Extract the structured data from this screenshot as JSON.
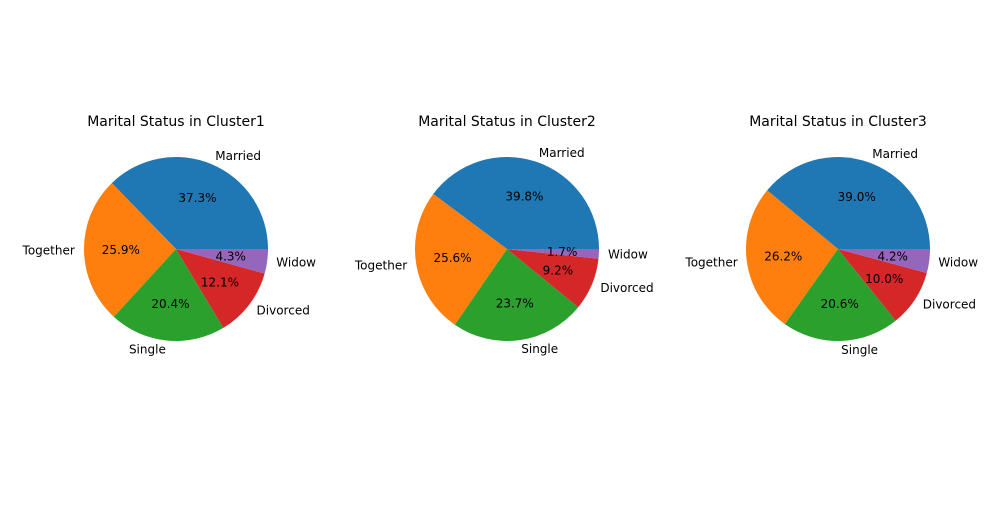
{
  "chart_data": [
    {
      "type": "pie",
      "title": "Marital Status in Cluster1",
      "categories": [
        "Married",
        "Together",
        "Single",
        "Divorced",
        "Widow"
      ],
      "values": [
        37.3,
        25.9,
        20.4,
        12.1,
        4.3
      ],
      "value_labels": [
        "37.3%",
        "25.9%",
        "20.4%",
        "12.1%",
        "4.3%"
      ],
      "colors": [
        "#1f77b4",
        "#ff7f0e",
        "#2ca02c",
        "#d62728",
        "#9467bd"
      ]
    },
    {
      "type": "pie",
      "title": "Marital Status in Cluster2",
      "categories": [
        "Married",
        "Together",
        "Single",
        "Divorced",
        "Widow"
      ],
      "values": [
        39.8,
        25.6,
        23.7,
        9.2,
        1.7
      ],
      "value_labels": [
        "39.8%",
        "25.6%",
        "23.7%",
        "9.2%",
        "1.7%"
      ],
      "colors": [
        "#1f77b4",
        "#ff7f0e",
        "#2ca02c",
        "#d62728",
        "#9467bd"
      ]
    },
    {
      "type": "pie",
      "title": "Marital Status in Cluster3",
      "categories": [
        "Married",
        "Together",
        "Single",
        "Divorced",
        "Widow"
      ],
      "values": [
        39.0,
        26.2,
        20.6,
        10.0,
        4.2
      ],
      "value_labels": [
        "39.0%",
        "26.2%",
        "20.6%",
        "10.0%",
        "4.2%"
      ],
      "colors": [
        "#1f77b4",
        "#ff7f0e",
        "#2ca02c",
        "#d62728",
        "#9467bd"
      ]
    }
  ]
}
